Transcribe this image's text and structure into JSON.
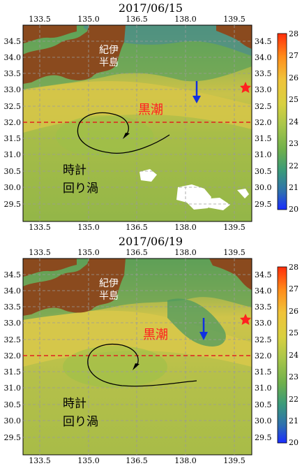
{
  "colors": {
    "land": "#8a4a1e",
    "warm": "#d9c64a",
    "cool": "#7fb04a",
    "kuroshio_label": "#ff2020",
    "arrow_blue": "#1030e0",
    "dashed_line": "#e02020",
    "star": "#ff2020"
  },
  "colorbar": {
    "ticks": [
      "28",
      "27",
      "26",
      "25",
      "24",
      "23",
      "22",
      "21",
      "20"
    ],
    "stops": [
      "#ff2d0a",
      "#ff8c1a",
      "#f0c33a",
      "#d8d040",
      "#a9c64a",
      "#6fb04c",
      "#3a9a7a",
      "#2e6fb0",
      "#1a2dff"
    ]
  },
  "panels": [
    {
      "date": "2017/06/15",
      "x_ticks": [
        "133.5",
        "135.0",
        "136.5",
        "138.0",
        "139.5"
      ],
      "y_ticks": [
        "34.5",
        "34.0",
        "33.5",
        "33.0",
        "32.5",
        "32.0",
        "31.5",
        "31.0",
        "30.5",
        "30.0",
        "29.5"
      ],
      "label_kii": [
        "紀伊",
        "半島"
      ],
      "label_kuroshio": "黒潮",
      "label_eddy": [
        "時計",
        "回り渦"
      ]
    },
    {
      "date": "2017/06/19",
      "x_ticks": [
        "133.5",
        "135.0",
        "136.5",
        "138.0",
        "139.5"
      ],
      "y_ticks": [
        "34.5",
        "34.0",
        "33.5",
        "33.0",
        "32.5",
        "32.0",
        "31.5",
        "31.0",
        "30.5",
        "30.0",
        "29.5"
      ],
      "label_kii": [
        "紀伊",
        "半島"
      ],
      "label_kuroshio": "黒潮",
      "label_eddy": [
        "時計",
        "回り渦"
      ]
    }
  ]
}
